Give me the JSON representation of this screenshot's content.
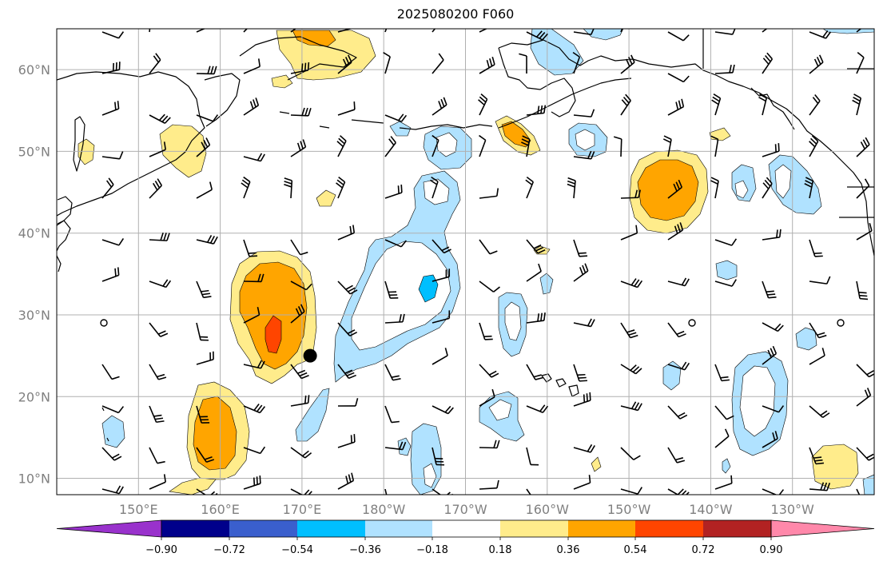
{
  "title": "2025080200 F060",
  "map": {
    "lon_min": 140,
    "lon_max": 240,
    "lat_min": 8,
    "lat_max": 65,
    "grid": true,
    "lat_ticks": [
      {
        "lat": 60,
        "label": "60°N"
      },
      {
        "lat": 50,
        "label": "50°N"
      },
      {
        "lat": 40,
        "label": "40°N"
      },
      {
        "lat": 30,
        "label": "30°N"
      },
      {
        "lat": 20,
        "label": "20°N"
      },
      {
        "lat": 10,
        "label": "10°N"
      }
    ],
    "lon_ticks": [
      {
        "lon": 150,
        "label": "150°E"
      },
      {
        "lon": 160,
        "label": "160°E"
      },
      {
        "lon": 170,
        "label": "170°E"
      },
      {
        "lon": 180,
        "label": "180°W"
      },
      {
        "lon": 190,
        "label": "170°W"
      },
      {
        "lon": 200,
        "label": "160°W"
      },
      {
        "lon": 210,
        "label": "150°W"
      },
      {
        "lon": 220,
        "label": "140°W"
      },
      {
        "lon": 230,
        "label": "130°W"
      }
    ],
    "storm_marker": {
      "lon": 171,
      "lat": 25
    }
  },
  "colorbar": {
    "labels": [
      "−0.90",
      "−0.72",
      "−0.54",
      "−0.36",
      "−0.18",
      "0.18",
      "0.36",
      "0.54",
      "0.72",
      "0.90"
    ],
    "colors": [
      "#9932cc",
      "#00008b",
      "#3a5fcd",
      "#00bfff",
      "#b0e2ff",
      "#ffffff",
      "#ffec8b",
      "#ffa500",
      "#ff4500",
      "#b22222",
      "#ff88aa"
    ]
  },
  "colors": {
    "grid": "#b0b0b0",
    "coast": "#000000",
    "barb": "#000000"
  }
}
